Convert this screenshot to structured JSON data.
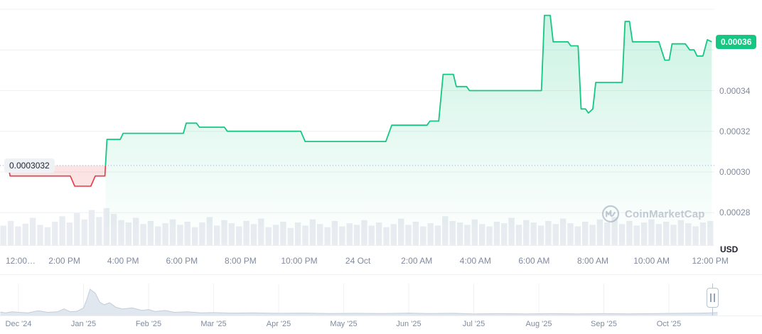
{
  "chart": {
    "current_price_label": "0.00036",
    "baseline_label": "0.0003032",
    "currency": "USD",
    "watermark": "CoinMarketCap"
  },
  "colors": {
    "up": "#16c784",
    "down": "#ea3943",
    "down_fill": "rgba(234,57,67,0.14)",
    "grid": "#eef0f4",
    "baseline_dotted": "#a0abbe",
    "volume_bar": "#e9ecf1",
    "nav_fill": "#e1e7ee",
    "nav_stroke": "#c3cdd9"
  },
  "chart_data": {
    "type": "area",
    "unit": "USD",
    "ylim": [
      0.00027,
      0.00038
    ],
    "baseline": 0.0003032,
    "current_price": 0.000364,
    "y_ticks": [
      {
        "label": "0.00034",
        "price": 0.00034
      },
      {
        "label": "0.00032",
        "price": 0.00032
      },
      {
        "label": "0.00030",
        "price": 0.0003
      },
      {
        "label": "0.00028",
        "price": 0.00028
      }
    ],
    "grid_prices": [
      0.00038,
      0.00036,
      0.00034,
      0.00032,
      0.0003,
      0.00028
    ],
    "x_ticks": [
      {
        "label": "12:00…",
        "hour": 0,
        "align": "left"
      },
      {
        "label": "2:00 PM",
        "hour": 2
      },
      {
        "label": "4:00 PM",
        "hour": 4
      },
      {
        "label": "6:00 PM",
        "hour": 6
      },
      {
        "label": "8:00 PM",
        "hour": 8
      },
      {
        "label": "10:00 PM",
        "hour": 10
      },
      {
        "label": "24 Oct",
        "hour": 12
      },
      {
        "label": "2:00 AM",
        "hour": 14
      },
      {
        "label": "4:00 AM",
        "hour": 16
      },
      {
        "label": "6:00 AM",
        "hour": 18
      },
      {
        "label": "8:00 AM",
        "hour": 20
      },
      {
        "label": "10:00 AM",
        "hour": 22
      },
      {
        "label": "12:00 PM",
        "hour": 24
      }
    ],
    "series": [
      {
        "name": "Price (USD)",
        "points": [
          [
            0,
            0.000302
          ],
          [
            0.1,
            0.000302
          ],
          [
            0.15,
            0.000298
          ],
          [
            2.2,
            0.000298
          ],
          [
            2.35,
            0.000293
          ],
          [
            2.9,
            0.000293
          ],
          [
            3.05,
            0.000298
          ],
          [
            3.38,
            0.000298
          ],
          [
            3.45,
            0.000316
          ],
          [
            3.9,
            0.000316
          ],
          [
            4.0,
            0.000319
          ],
          [
            6.05,
            0.000319
          ],
          [
            6.15,
            0.000324
          ],
          [
            6.5,
            0.000324
          ],
          [
            6.6,
            0.000322
          ],
          [
            7.45,
            0.000322
          ],
          [
            7.55,
            0.00032
          ],
          [
            10.05,
            0.00032
          ],
          [
            10.2,
            0.000315
          ],
          [
            12.95,
            0.000315
          ],
          [
            13.05,
            0.000319
          ],
          [
            13.15,
            0.000323
          ],
          [
            14.35,
            0.000323
          ],
          [
            14.45,
            0.000325
          ],
          [
            14.75,
            0.000325
          ],
          [
            14.9,
            0.000348
          ],
          [
            15.25,
            0.000348
          ],
          [
            15.35,
            0.000342
          ],
          [
            15.7,
            0.000342
          ],
          [
            15.8,
            0.00034
          ],
          [
            18.25,
            0.00034
          ],
          [
            18.35,
            0.000377
          ],
          [
            18.55,
            0.000377
          ],
          [
            18.65,
            0.000364
          ],
          [
            19.15,
            0.000364
          ],
          [
            19.25,
            0.000362
          ],
          [
            19.5,
            0.000362
          ],
          [
            19.6,
            0.000331
          ],
          [
            19.75,
            0.000331
          ],
          [
            19.85,
            0.000329
          ],
          [
            20.0,
            0.000331
          ],
          [
            20.1,
            0.000344
          ],
          [
            21.0,
            0.000344
          ],
          [
            21.1,
            0.000374
          ],
          [
            21.25,
            0.000374
          ],
          [
            21.35,
            0.000364
          ],
          [
            22.25,
            0.000364
          ],
          [
            22.45,
            0.000355
          ],
          [
            22.6,
            0.000355
          ],
          [
            22.7,
            0.000363
          ],
          [
            23.15,
            0.000363
          ],
          [
            23.3,
            0.00036
          ],
          [
            23.45,
            0.00036
          ],
          [
            23.55,
            0.000357
          ],
          [
            23.75,
            0.000357
          ],
          [
            23.9,
            0.000365
          ],
          [
            24.05,
            0.000364
          ]
        ]
      }
    ],
    "volume_norm": [
      0.5,
      0.62,
      0.48,
      0.55,
      0.7,
      0.52,
      0.46,
      0.6,
      0.74,
      0.58,
      0.82,
      0.66,
      0.9,
      0.72,
      0.95,
      0.8,
      0.64,
      0.58,
      0.7,
      0.54,
      0.62,
      0.48,
      0.56,
      0.66,
      0.52,
      0.6,
      0.46,
      0.58,
      0.72,
      0.5,
      0.64,
      0.56,
      0.48,
      0.62,
      0.54,
      0.68,
      0.46,
      0.52,
      0.6,
      0.44,
      0.58,
      0.5,
      0.66,
      0.54,
      0.46,
      0.62,
      0.48,
      0.56,
      0.52,
      0.64,
      0.5,
      0.58,
      0.46,
      0.54,
      0.68,
      0.52,
      0.6,
      0.48,
      0.56,
      0.5,
      0.74,
      0.62,
      0.58,
      0.52,
      0.66,
      0.54,
      0.48,
      0.6,
      0.56,
      0.7,
      0.52,
      0.64,
      0.58,
      0.5,
      0.62,
      0.54,
      0.68,
      0.56,
      0.48,
      0.6,
      0.52,
      0.66,
      0.58,
      0.72,
      0.54,
      0.62,
      0.5,
      0.58,
      0.66,
      0.54,
      0.6,
      0.52,
      0.64,
      0.56,
      0.48,
      0.58,
      0.62
    ],
    "navigator": {
      "months": [
        "Dec '24",
        "Jan '25",
        "Feb '25",
        "Mar '25",
        "Apr '25",
        "May '25",
        "Jun '25",
        "Jul '25",
        "Aug '25",
        "Sep '25",
        "Oct '25"
      ],
      "points": [
        [
          -0.28,
          0.12
        ],
        [
          -0.2,
          0.09
        ],
        [
          -0.1,
          0.13
        ],
        [
          0,
          0.11
        ],
        [
          0.15,
          0.09
        ],
        [
          0.3,
          0.17
        ],
        [
          0.45,
          0.11
        ],
        [
          0.6,
          0.13
        ],
        [
          0.7,
          0.24
        ],
        [
          0.8,
          0.13
        ],
        [
          0.9,
          0.15
        ],
        [
          1.0,
          0.28
        ],
        [
          1.05,
          0.6
        ],
        [
          1.1,
          1.0
        ],
        [
          1.18,
          0.85
        ],
        [
          1.25,
          0.5
        ],
        [
          1.32,
          0.4
        ],
        [
          1.4,
          0.48
        ],
        [
          1.5,
          0.3
        ],
        [
          1.6,
          0.24
        ],
        [
          1.75,
          0.28
        ],
        [
          1.9,
          0.18
        ],
        [
          2.0,
          0.22
        ],
        [
          2.1,
          0.14
        ],
        [
          2.25,
          0.18
        ],
        [
          2.4,
          0.11
        ],
        [
          2.6,
          0.13
        ],
        [
          2.8,
          0.09
        ],
        [
          3.0,
          0.1
        ],
        [
          3.3,
          0.08
        ],
        [
          3.6,
          0.09
        ],
        [
          4.0,
          0.07
        ],
        [
          4.4,
          0.08
        ],
        [
          4.8,
          0.06
        ],
        [
          5.2,
          0.07
        ],
        [
          5.6,
          0.06
        ],
        [
          6.0,
          0.08
        ],
        [
          6.3,
          0.06
        ],
        [
          6.7,
          0.07
        ],
        [
          7.0,
          0.05
        ],
        [
          7.4,
          0.06
        ],
        [
          7.8,
          0.05
        ],
        [
          8.2,
          0.06
        ],
        [
          8.6,
          0.05
        ],
        [
          9.0,
          0.06
        ],
        [
          9.4,
          0.05
        ],
        [
          9.8,
          0.06
        ],
        [
          10.2,
          0.07
        ],
        [
          10.5,
          0.08
        ],
        [
          10.75,
          0.1
        ]
      ]
    }
  }
}
